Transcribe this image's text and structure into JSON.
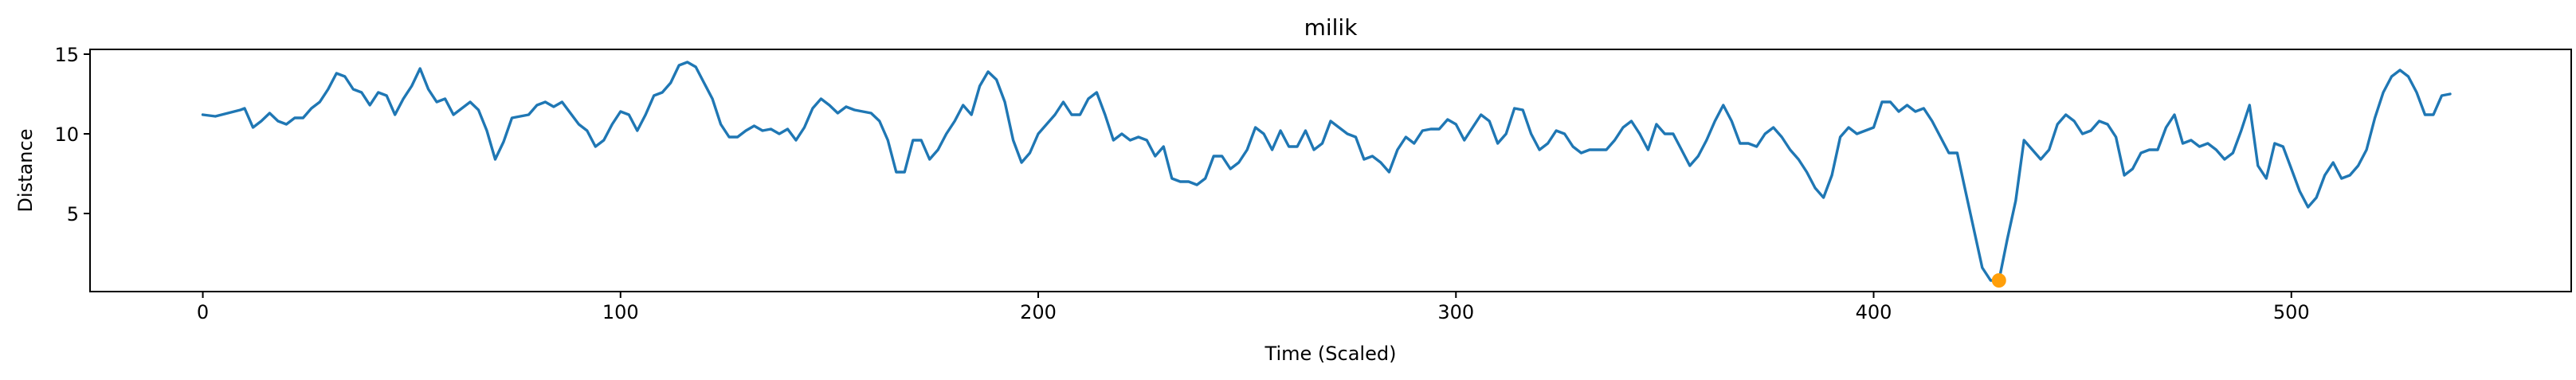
{
  "chart_data": {
    "type": "line",
    "title": "milik",
    "xlabel": "Time (Scaled)",
    "ylabel": "Distance",
    "xlim": [
      -27,
      567
    ],
    "ylim": [
      0.1,
      15.3
    ],
    "x_ticks": [
      0,
      100,
      200,
      300,
      400,
      500
    ],
    "y_ticks": [
      5,
      10,
      15
    ],
    "grid": false,
    "legend": "none",
    "colors": {
      "line": "#1f77b4",
      "marker": "#ff9f0a"
    },
    "series": [
      {
        "points": [
          [
            0,
            11.2
          ],
          [
            3,
            11.1
          ],
          [
            6,
            11.3
          ],
          [
            9,
            11.5
          ],
          [
            10,
            11.6
          ],
          [
            12,
            10.4
          ],
          [
            14,
            10.8
          ],
          [
            16,
            11.3
          ],
          [
            18,
            10.8
          ],
          [
            20,
            10.6
          ],
          [
            22,
            11.0
          ],
          [
            24,
            11.0
          ],
          [
            26,
            11.6
          ],
          [
            28,
            12.0
          ],
          [
            30,
            12.8
          ],
          [
            32,
            13.8
          ],
          [
            34,
            13.6
          ],
          [
            36,
            12.8
          ],
          [
            38,
            12.6
          ],
          [
            40,
            11.8
          ],
          [
            42,
            12.6
          ],
          [
            44,
            12.4
          ],
          [
            46,
            11.2
          ],
          [
            48,
            12.2
          ],
          [
            50,
            13.0
          ],
          [
            52,
            14.1
          ],
          [
            54,
            12.8
          ],
          [
            56,
            12.0
          ],
          [
            58,
            12.2
          ],
          [
            60,
            11.2
          ],
          [
            62,
            11.6
          ],
          [
            64,
            12.0
          ],
          [
            66,
            11.5
          ],
          [
            68,
            10.2
          ],
          [
            70,
            8.4
          ],
          [
            72,
            9.5
          ],
          [
            74,
            11.0
          ],
          [
            76,
            11.1
          ],
          [
            78,
            11.2
          ],
          [
            80,
            11.8
          ],
          [
            82,
            12.0
          ],
          [
            84,
            11.7
          ],
          [
            86,
            12.0
          ],
          [
            88,
            11.3
          ],
          [
            90,
            10.6
          ],
          [
            92,
            10.2
          ],
          [
            94,
            9.2
          ],
          [
            96,
            9.6
          ],
          [
            98,
            10.6
          ],
          [
            100,
            11.4
          ],
          [
            102,
            11.2
          ],
          [
            104,
            10.2
          ],
          [
            106,
            11.2
          ],
          [
            108,
            12.4
          ],
          [
            110,
            12.6
          ],
          [
            112,
            13.2
          ],
          [
            114,
            14.3
          ],
          [
            116,
            14.5
          ],
          [
            118,
            14.2
          ],
          [
            120,
            13.2
          ],
          [
            122,
            12.2
          ],
          [
            124,
            10.6
          ],
          [
            126,
            9.8
          ],
          [
            128,
            9.8
          ],
          [
            130,
            10.2
          ],
          [
            132,
            10.5
          ],
          [
            134,
            10.2
          ],
          [
            136,
            10.3
          ],
          [
            138,
            10.0
          ],
          [
            140,
            10.3
          ],
          [
            142,
            9.6
          ],
          [
            144,
            10.4
          ],
          [
            146,
            11.6
          ],
          [
            148,
            12.2
          ],
          [
            150,
            11.8
          ],
          [
            152,
            11.3
          ],
          [
            154,
            11.7
          ],
          [
            156,
            11.5
          ],
          [
            158,
            11.4
          ],
          [
            160,
            11.3
          ],
          [
            162,
            10.8
          ],
          [
            164,
            9.6
          ],
          [
            166,
            7.6
          ],
          [
            168,
            7.6
          ],
          [
            170,
            9.6
          ],
          [
            172,
            9.6
          ],
          [
            174,
            8.4
          ],
          [
            176,
            9.0
          ],
          [
            178,
            10.0
          ],
          [
            180,
            10.8
          ],
          [
            182,
            11.8
          ],
          [
            184,
            11.2
          ],
          [
            186,
            13.0
          ],
          [
            188,
            13.9
          ],
          [
            190,
            13.4
          ],
          [
            192,
            12.0
          ],
          [
            194,
            9.6
          ],
          [
            196,
            8.2
          ],
          [
            198,
            8.8
          ],
          [
            200,
            10.0
          ],
          [
            202,
            10.6
          ],
          [
            204,
            11.2
          ],
          [
            206,
            12.0
          ],
          [
            208,
            11.2
          ],
          [
            210,
            11.2
          ],
          [
            212,
            12.2
          ],
          [
            214,
            12.6
          ],
          [
            216,
            11.2
          ],
          [
            218,
            9.6
          ],
          [
            220,
            10.0
          ],
          [
            222,
            9.6
          ],
          [
            224,
            9.8
          ],
          [
            226,
            9.6
          ],
          [
            228,
            8.6
          ],
          [
            230,
            9.2
          ],
          [
            232,
            7.2
          ],
          [
            234,
            7.0
          ],
          [
            236,
            7.0
          ],
          [
            238,
            6.8
          ],
          [
            240,
            7.2
          ],
          [
            242,
            8.6
          ],
          [
            244,
            8.6
          ],
          [
            246,
            7.8
          ],
          [
            248,
            8.2
          ],
          [
            250,
            9.0
          ],
          [
            252,
            10.4
          ],
          [
            254,
            10.0
          ],
          [
            256,
            9.0
          ],
          [
            258,
            10.2
          ],
          [
            260,
            9.2
          ],
          [
            262,
            9.2
          ],
          [
            264,
            10.2
          ],
          [
            266,
            9.0
          ],
          [
            268,
            9.4
          ],
          [
            270,
            10.8
          ],
          [
            272,
            10.4
          ],
          [
            274,
            10.0
          ],
          [
            276,
            9.8
          ],
          [
            278,
            8.4
          ],
          [
            280,
            8.6
          ],
          [
            282,
            8.2
          ],
          [
            284,
            7.6
          ],
          [
            286,
            9.0
          ],
          [
            288,
            9.8
          ],
          [
            290,
            9.4
          ],
          [
            292,
            10.2
          ],
          [
            294,
            10.3
          ],
          [
            296,
            10.3
          ],
          [
            298,
            10.9
          ],
          [
            300,
            10.6
          ],
          [
            302,
            9.6
          ],
          [
            304,
            10.4
          ],
          [
            306,
            11.2
          ],
          [
            308,
            10.8
          ],
          [
            310,
            9.4
          ],
          [
            312,
            10.0
          ],
          [
            314,
            11.6
          ],
          [
            316,
            11.5
          ],
          [
            318,
            10.0
          ],
          [
            320,
            9.0
          ],
          [
            322,
            9.4
          ],
          [
            324,
            10.2
          ],
          [
            326,
            10.0
          ],
          [
            328,
            9.2
          ],
          [
            330,
            8.8
          ],
          [
            332,
            9.0
          ],
          [
            334,
            9.0
          ],
          [
            336,
            9.0
          ],
          [
            338,
            9.6
          ],
          [
            340,
            10.4
          ],
          [
            342,
            10.8
          ],
          [
            344,
            10.0
          ],
          [
            346,
            9.0
          ],
          [
            348,
            10.6
          ],
          [
            350,
            10.0
          ],
          [
            352,
            10.0
          ],
          [
            354,
            9.0
          ],
          [
            356,
            8.0
          ],
          [
            358,
            8.6
          ],
          [
            360,
            9.6
          ],
          [
            362,
            10.8
          ],
          [
            364,
            11.8
          ],
          [
            366,
            10.8
          ],
          [
            368,
            9.4
          ],
          [
            370,
            9.4
          ],
          [
            372,
            9.2
          ],
          [
            374,
            10.0
          ],
          [
            376,
            10.4
          ],
          [
            378,
            9.8
          ],
          [
            380,
            9.0
          ],
          [
            382,
            8.4
          ],
          [
            384,
            7.6
          ],
          [
            386,
            6.6
          ],
          [
            388,
            6.0
          ],
          [
            390,
            7.4
          ],
          [
            392,
            9.8
          ],
          [
            394,
            10.4
          ],
          [
            396,
            10.0
          ],
          [
            398,
            10.2
          ],
          [
            400,
            10.4
          ],
          [
            402,
            12.0
          ],
          [
            404,
            12.0
          ],
          [
            406,
            11.4
          ],
          [
            408,
            11.8
          ],
          [
            410,
            11.4
          ],
          [
            412,
            11.6
          ],
          [
            414,
            10.8
          ],
          [
            416,
            9.8
          ],
          [
            418,
            8.8
          ],
          [
            420,
            8.8
          ],
          [
            422,
            6.4
          ],
          [
            424,
            4.0
          ],
          [
            426,
            1.6
          ],
          [
            428,
            0.8
          ],
          [
            430,
            0.8
          ],
          [
            432,
            3.4
          ],
          [
            434,
            5.8
          ],
          [
            436,
            9.6
          ],
          [
            438,
            9.0
          ],
          [
            440,
            8.4
          ],
          [
            442,
            9.0
          ],
          [
            444,
            10.6
          ],
          [
            446,
            11.2
          ],
          [
            448,
            10.8
          ],
          [
            450,
            10.0
          ],
          [
            452,
            10.2
          ],
          [
            454,
            10.8
          ],
          [
            456,
            10.6
          ],
          [
            458,
            9.8
          ],
          [
            460,
            7.4
          ],
          [
            462,
            7.8
          ],
          [
            464,
            8.8
          ],
          [
            466,
            9.0
          ],
          [
            468,
            9.0
          ],
          [
            470,
            10.4
          ],
          [
            472,
            11.2
          ],
          [
            474,
            9.4
          ],
          [
            476,
            9.6
          ],
          [
            478,
            9.2
          ],
          [
            480,
            9.4
          ],
          [
            482,
            9.0
          ],
          [
            484,
            8.4
          ],
          [
            486,
            8.8
          ],
          [
            488,
            10.2
          ],
          [
            490,
            11.8
          ],
          [
            492,
            8.0
          ],
          [
            494,
            7.2
          ],
          [
            496,
            9.4
          ],
          [
            498,
            9.2
          ],
          [
            500,
            7.8
          ],
          [
            502,
            6.4
          ],
          [
            504,
            5.4
          ],
          [
            506,
            6.0
          ],
          [
            508,
            7.4
          ],
          [
            510,
            8.2
          ],
          [
            512,
            7.2
          ],
          [
            514,
            7.4
          ],
          [
            516,
            8.0
          ],
          [
            518,
            9.0
          ],
          [
            520,
            11.0
          ],
          [
            522,
            12.6
          ],
          [
            524,
            13.6
          ],
          [
            526,
            14.0
          ],
          [
            528,
            13.6
          ],
          [
            530,
            12.6
          ],
          [
            532,
            11.2
          ],
          [
            534,
            11.2
          ],
          [
            536,
            12.4
          ],
          [
            538,
            12.5
          ]
        ]
      }
    ],
    "markers": [
      {
        "x": 430,
        "y": 0.8
      }
    ]
  }
}
